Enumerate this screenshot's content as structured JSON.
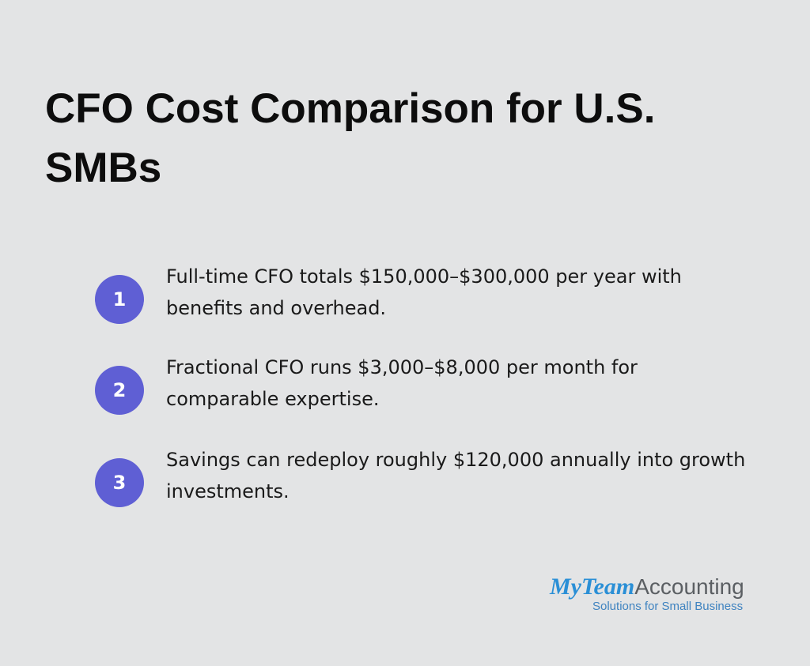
{
  "header": {
    "title": "CFO Cost Comparison for U.S. SMBs"
  },
  "items": [
    {
      "number": "1",
      "text": "Full-time CFO totals $150,000–$300,000 per year with benefits and overhead."
    },
    {
      "number": "2",
      "text": "Fractional CFO runs $3,000–$8,000 per month for comparable expertise."
    },
    {
      "number": "3",
      "text": "Savings can redeploy roughly $120,000 annually into growth investments."
    }
  ],
  "logo": {
    "brand": "MyTeam",
    "name": "Accounting",
    "tagline": "Solutions for Small Business"
  }
}
